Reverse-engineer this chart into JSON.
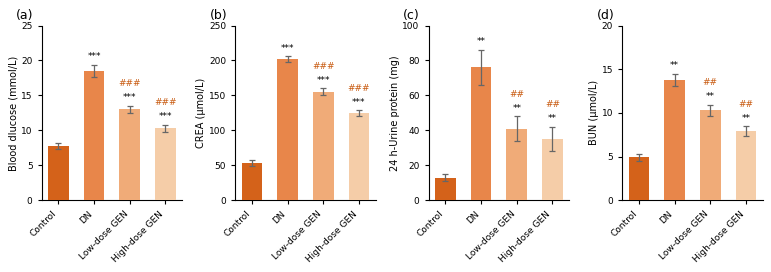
{
  "subplots": [
    {
      "label": "(a)",
      "ylabel": "Blood dIucose (mmol/L)",
      "ylim": [
        0,
        25
      ],
      "yticks": [
        0,
        5,
        10,
        15,
        20,
        25
      ],
      "categories": [
        "Control",
        "DN",
        "Low-dose GEN",
        "High-dose GEN"
      ],
      "values": [
        7.8,
        18.5,
        13.0,
        10.3
      ],
      "errors": [
        0.4,
        0.9,
        0.5,
        0.5
      ],
      "colors": [
        "#D4621A",
        "#E8864A",
        "#F0AB78",
        "#F5CDA8"
      ],
      "sig_above": [
        "",
        "***",
        "***",
        "***"
      ],
      "sig_hash": [
        "",
        "",
        "###",
        "###"
      ]
    },
    {
      "label": "(b)",
      "ylabel": "CREA (μmol/L)",
      "ylim": [
        0,
        250
      ],
      "yticks": [
        0,
        50,
        100,
        150,
        200,
        250
      ],
      "categories": [
        "Control",
        "DN",
        "Low-dose GEN",
        "High-dose GEN"
      ],
      "values": [
        53,
        202,
        155,
        125
      ],
      "errors": [
        4,
        4,
        5,
        4
      ],
      "colors": [
        "#D4621A",
        "#E8864A",
        "#F0AB78",
        "#F5CDA8"
      ],
      "sig_above": [
        "",
        "***",
        "***",
        "***"
      ],
      "sig_hash": [
        "",
        "",
        "###",
        "###"
      ]
    },
    {
      "label": "(c)",
      "ylabel": "24 h-Urine protein (mg)",
      "ylim": [
        0,
        100
      ],
      "yticks": [
        0,
        20,
        40,
        60,
        80,
        100
      ],
      "categories": [
        "Control",
        "DN",
        "Low-dose GEN",
        "High-dose GEN"
      ],
      "values": [
        13,
        76,
        41,
        35
      ],
      "errors": [
        2,
        10,
        7,
        7
      ],
      "colors": [
        "#D4621A",
        "#E8864A",
        "#F0AB78",
        "#F5CDA8"
      ],
      "sig_above": [
        "",
        "**",
        "**",
        "**"
      ],
      "sig_hash": [
        "",
        "",
        "##",
        "##"
      ]
    },
    {
      "label": "(d)",
      "ylabel": "BUN (μmol/L)",
      "ylim": [
        0,
        20
      ],
      "yticks": [
        0,
        5,
        10,
        15,
        20
      ],
      "categories": [
        "Control",
        "DN",
        "Low-dose GEN",
        "High-dose GEN"
      ],
      "values": [
        4.9,
        13.8,
        10.3,
        7.9
      ],
      "errors": [
        0.35,
        0.7,
        0.65,
        0.6
      ],
      "colors": [
        "#D4621A",
        "#E8864A",
        "#F0AB78",
        "#F5CDA8"
      ],
      "sig_above": [
        "",
        "**",
        "**",
        "**"
      ],
      "sig_hash": [
        "",
        "",
        "##",
        "##"
      ]
    }
  ],
  "background_color": "#ffffff",
  "bar_width": 0.58,
  "tick_fontsize": 6.5,
  "label_fontsize": 7.0,
  "star_fontsize": 6.5,
  "hash_color": "#C85A10",
  "star_color": "#000000"
}
